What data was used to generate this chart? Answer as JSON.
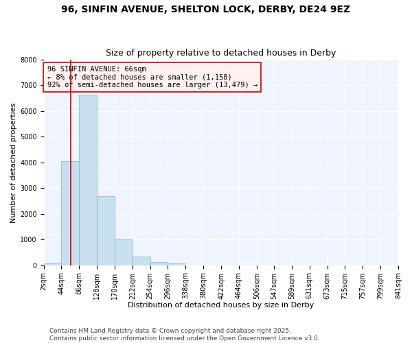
{
  "title": "96, SINFIN AVENUE, SHELTON LOCK, DERBY, DE24 9EZ",
  "subtitle": "Size of property relative to detached houses in Derby",
  "xlabel": "Distribution of detached houses by size in Derby",
  "ylabel": "Number of detached properties",
  "bar_color": "#c8dff0",
  "bar_edge_color": "#7ab0d4",
  "background_color": "#ffffff",
  "plot_bg_color": "#f0f4ff",
  "bin_labels": [
    "2sqm",
    "44sqm",
    "86sqm",
    "128sqm",
    "170sqm",
    "212sqm",
    "254sqm",
    "296sqm",
    "338sqm",
    "380sqm",
    "422sqm",
    "464sqm",
    "506sqm",
    "547sqm",
    "589sqm",
    "631sqm",
    "673sqm",
    "715sqm",
    "757sqm",
    "799sqm",
    "841sqm"
  ],
  "bar_values": [
    70,
    4050,
    6630,
    2680,
    1000,
    330,
    120,
    70,
    0,
    0,
    0,
    0,
    0,
    0,
    0,
    0,
    0,
    0,
    0,
    0
  ],
  "bin_edges": [
    2,
    44,
    86,
    128,
    170,
    212,
    254,
    296,
    338,
    380,
    422,
    464,
    506,
    547,
    589,
    631,
    673,
    715,
    757,
    799,
    841
  ],
  "ylim": [
    0,
    8000
  ],
  "yticks": [
    0,
    1000,
    2000,
    3000,
    4000,
    5000,
    6000,
    7000,
    8000
  ],
  "vline_x": 66,
  "vline_color": "#cc0000",
  "annotation_line1": "96 SINFIN AVENUE: 66sqm",
  "annotation_line2": "← 8% of detached houses are smaller (1,158)",
  "annotation_line3": "92% of semi-detached houses are larger (13,479) →",
  "annotation_box_facecolor": "#fff0f0",
  "annotation_box_edgecolor": "#cc0000",
  "footer1": "Contains HM Land Registry data © Crown copyright and database right 2025.",
  "footer2": "Contains public sector information licensed under the Open Government Licence v3.0.",
  "title_fontsize": 10,
  "subtitle_fontsize": 9,
  "axis_label_fontsize": 8,
  "tick_fontsize": 7,
  "annotation_fontsize": 7.5,
  "footer_fontsize": 6.5
}
